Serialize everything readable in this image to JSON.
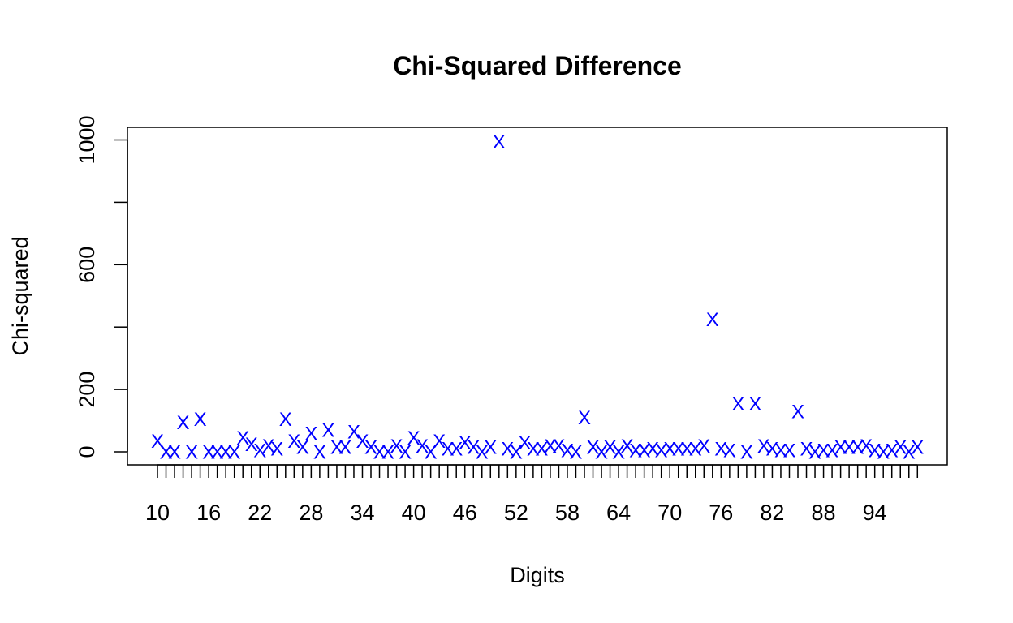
{
  "chart_data": {
    "type": "scatter",
    "title": "Chi-Squared Difference",
    "xlabel": "Digits",
    "ylabel": "Chi-squared",
    "marker": "X",
    "marker_color": "#0000ff",
    "axis_color": "#000000",
    "xlim": [
      10,
      99
    ],
    "ylim": [
      0,
      1000
    ],
    "x_ticks": [
      10,
      11,
      12,
      13,
      14,
      15,
      16,
      17,
      18,
      19,
      20,
      21,
      22,
      23,
      24,
      25,
      26,
      27,
      28,
      29,
      30,
      31,
      32,
      33,
      34,
      35,
      36,
      37,
      38,
      39,
      40,
      41,
      42,
      43,
      44,
      45,
      46,
      47,
      48,
      49,
      50,
      51,
      52,
      53,
      54,
      55,
      56,
      57,
      58,
      59,
      60,
      61,
      62,
      63,
      64,
      65,
      66,
      67,
      68,
      69,
      70,
      71,
      72,
      73,
      74,
      75,
      76,
      77,
      78,
      79,
      80,
      81,
      82,
      83,
      84,
      85,
      86,
      87,
      88,
      89,
      90,
      91,
      92,
      93,
      94,
      95,
      96,
      97,
      98,
      99
    ],
    "x_tick_labels": [
      "10",
      "16",
      "22",
      "28",
      "34",
      "40",
      "46",
      "52",
      "58",
      "64",
      "70",
      "76",
      "82",
      "88",
      "94"
    ],
    "y_ticks": [
      0,
      200,
      400,
      600,
      800,
      1000
    ],
    "y_tick_labels": [
      "0",
      "200",
      "600",
      "1000"
    ],
    "grid": false,
    "x": [
      10,
      11,
      12,
      13,
      14,
      15,
      16,
      17,
      18,
      19,
      20,
      21,
      22,
      23,
      24,
      25,
      26,
      27,
      28,
      29,
      30,
      31,
      32,
      33,
      34,
      35,
      36,
      37,
      38,
      39,
      40,
      41,
      42,
      43,
      44,
      45,
      46,
      47,
      48,
      49,
      50,
      51,
      52,
      53,
      54,
      55,
      56,
      57,
      58,
      59,
      60,
      61,
      62,
      63,
      64,
      65,
      66,
      67,
      68,
      69,
      70,
      71,
      72,
      73,
      74,
      75,
      76,
      77,
      78,
      79,
      80,
      81,
      82,
      83,
      84,
      85,
      86,
      87,
      88,
      89,
      90,
      91,
      92,
      93,
      94,
      95,
      96,
      97,
      98,
      99
    ],
    "y": [
      35,
      0,
      0,
      95,
      0,
      105,
      0,
      0,
      0,
      0,
      45,
      25,
      5,
      20,
      10,
      105,
      35,
      15,
      60,
      0,
      70,
      15,
      15,
      65,
      35,
      15,
      0,
      0,
      20,
      0,
      45,
      20,
      0,
      35,
      10,
      10,
      30,
      15,
      0,
      15,
      995,
      10,
      0,
      30,
      10,
      10,
      20,
      20,
      5,
      0,
      110,
      15,
      0,
      15,
      0,
      20,
      5,
      5,
      10,
      5,
      10,
      10,
      10,
      10,
      20,
      425,
      10,
      5,
      155,
      0,
      155,
      20,
      10,
      5,
      5,
      130,
      10,
      0,
      5,
      5,
      15,
      15,
      15,
      20,
      5,
      0,
      5,
      15,
      0,
      15
    ]
  }
}
